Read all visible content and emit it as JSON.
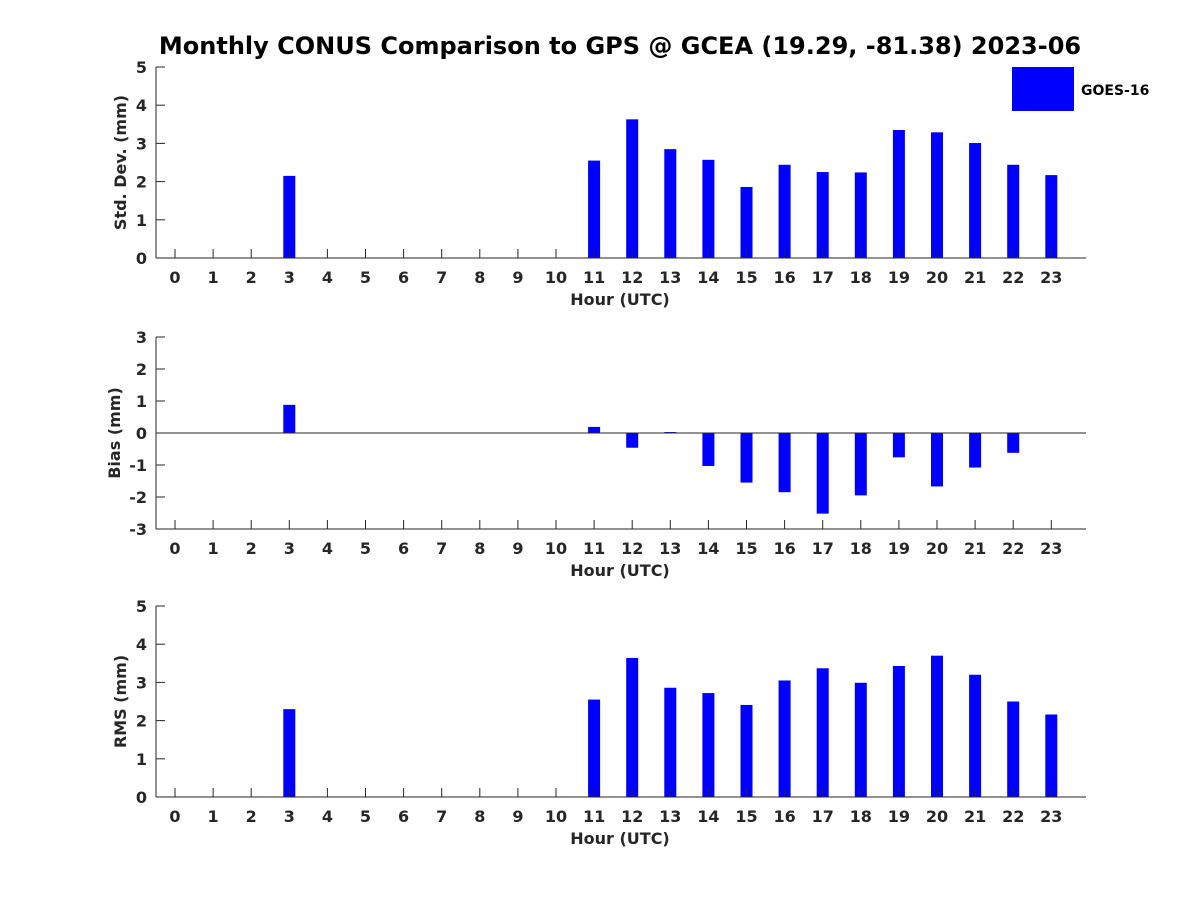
{
  "title": "Monthly CONUS Comparison to GPS @ GCEA (19.29, -81.38) 2023-06",
  "legend": {
    "label": "GOES-16",
    "position": "top-right"
  },
  "colors": {
    "bar": "#0000FF",
    "axis": "#262626",
    "title": "#000000"
  },
  "chart_data": [
    {
      "type": "bar",
      "title": "Monthly CONUS Comparison to GPS @ GCEA (19.29, -81.38) 2023-06",
      "xlabel": "Hour (UTC)",
      "ylabel": "Std. Dev. (mm)",
      "ylim": [
        0,
        5
      ],
      "yticks": [
        0,
        1,
        2,
        3,
        4,
        5
      ],
      "categories": [
        "0",
        "1",
        "2",
        "3",
        "4",
        "5",
        "6",
        "7",
        "8",
        "9",
        "10",
        "11",
        "12",
        "13",
        "14",
        "15",
        "16",
        "17",
        "18",
        "19",
        "20",
        "21",
        "22",
        "23"
      ],
      "series": [
        {
          "name": "GOES-16",
          "values": [
            null,
            null,
            null,
            2.15,
            null,
            null,
            null,
            null,
            null,
            null,
            null,
            2.55,
            3.63,
            2.85,
            2.57,
            1.86,
            2.44,
            2.25,
            2.24,
            3.35,
            3.29,
            3.01,
            2.44,
            2.17
          ]
        }
      ],
      "grid": false,
      "legend": "top-right"
    },
    {
      "type": "bar",
      "xlabel": "Hour (UTC)",
      "ylabel": "Bias (mm)",
      "ylim": [
        -3,
        3
      ],
      "yticks": [
        -3,
        -2,
        -1,
        0,
        1,
        2,
        3
      ],
      "categories": [
        "0",
        "1",
        "2",
        "3",
        "4",
        "5",
        "6",
        "7",
        "8",
        "9",
        "10",
        "11",
        "12",
        "13",
        "14",
        "15",
        "16",
        "17",
        "18",
        "19",
        "20",
        "21",
        "22",
        "23"
      ],
      "series": [
        {
          "name": "GOES-16",
          "values": [
            null,
            null,
            null,
            0.88,
            null,
            null,
            null,
            null,
            null,
            null,
            null,
            0.19,
            -0.46,
            0.03,
            -1.03,
            -1.55,
            -1.85,
            -2.52,
            -1.95,
            -0.76,
            -1.67,
            -1.08,
            -0.62,
            null
          ]
        }
      ],
      "grid": false,
      "zero_line": true
    },
    {
      "type": "bar",
      "xlabel": "Hour (UTC)",
      "ylabel": "RMS (mm)",
      "ylim": [
        0,
        5
      ],
      "yticks": [
        0,
        1,
        2,
        3,
        4,
        5
      ],
      "categories": [
        "0",
        "1",
        "2",
        "3",
        "4",
        "5",
        "6",
        "7",
        "8",
        "9",
        "10",
        "11",
        "12",
        "13",
        "14",
        "15",
        "16",
        "17",
        "18",
        "19",
        "20",
        "21",
        "22",
        "23"
      ],
      "series": [
        {
          "name": "GOES-16",
          "values": [
            null,
            null,
            null,
            2.3,
            null,
            null,
            null,
            null,
            null,
            null,
            null,
            2.55,
            3.64,
            2.86,
            2.72,
            2.41,
            3.05,
            3.37,
            2.99,
            3.43,
            3.7,
            3.2,
            2.5,
            2.16
          ]
        }
      ],
      "grid": false
    }
  ]
}
